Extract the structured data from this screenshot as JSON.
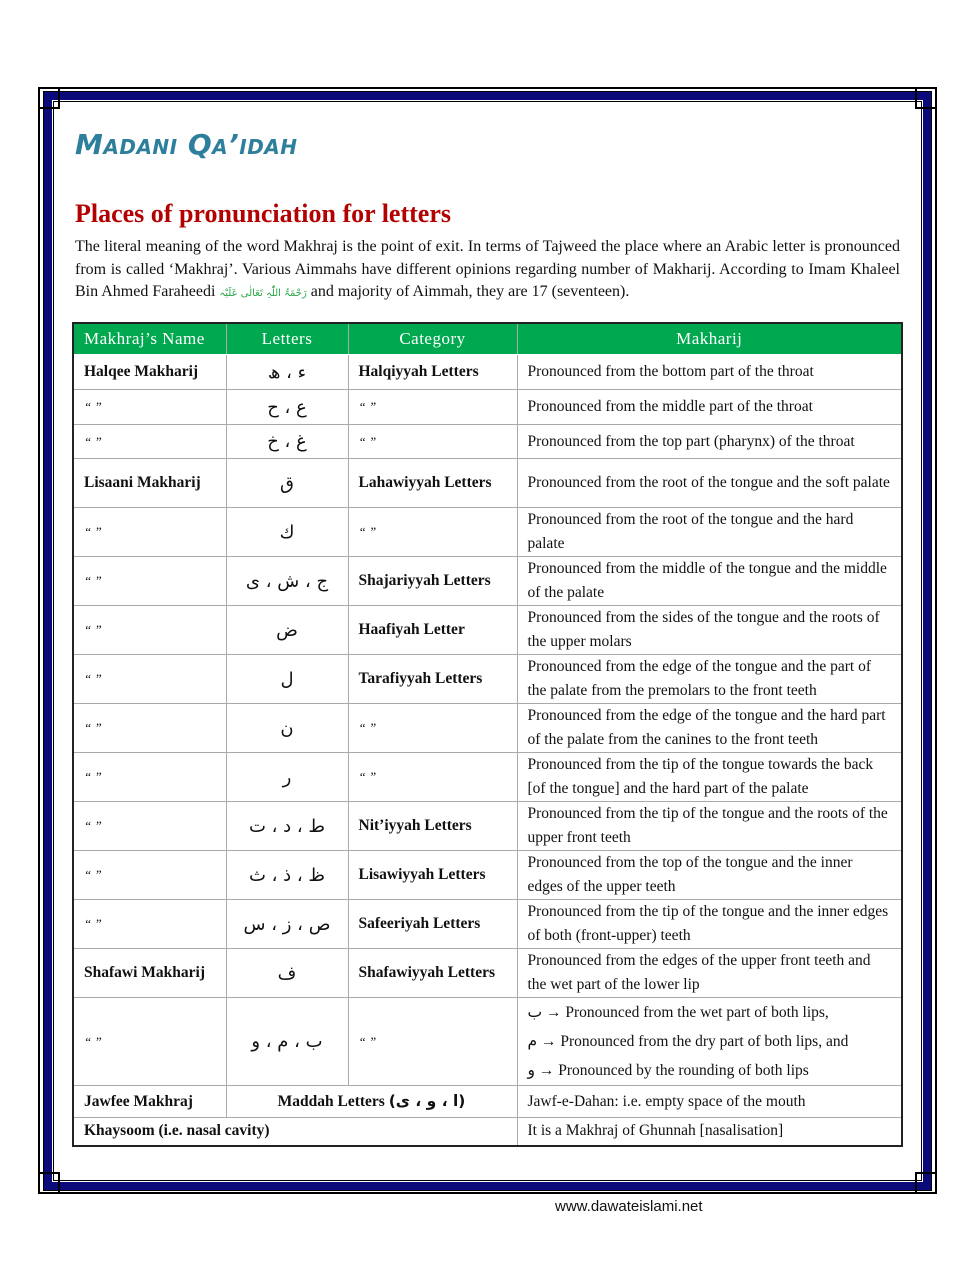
{
  "header": {
    "title": "Madani Qa’idah"
  },
  "section": {
    "heading": "Places of pronunciation for letters",
    "intro_before": "The literal meaning of the word Makhraj is the point of exit. In terms of Tajweed the place where an Arabic letter is pronounced from is called ‘Makhraj’. Various Aimmahs have different opinions regarding number of Makharij. According to Imam Khaleel Bin Ahmed Faraheedi",
    "honorific": "رَحْمَۃُ اللّٰہِ تَعَالٰی عَلَیْہ",
    "intro_after": "and majority of Aimmah, they are 17 (seventeen)."
  },
  "table": {
    "headers": [
      "Makhraj’s Name",
      "Letters",
      "Category",
      "Makharij"
    ],
    "rows": [
      {
        "name": "Halqee Makharij",
        "letters": "ء ، ھ",
        "category": "Halqiyyah Letters",
        "desc": "Pronounced from the bottom part of the throat"
      },
      {
        "name": "“ ”",
        "letters": "ع ، ح",
        "category": "“ ”",
        "desc": "Pronounced from the middle part of the throat"
      },
      {
        "name": "“ ”",
        "letters": "غ ، خ",
        "category": "“ ”",
        "desc": "Pronounced from the top part (pharynx) of the throat"
      },
      {
        "name": "Lisaani Makharij",
        "letters": "ق",
        "category": "Lahawiyyah Letters",
        "desc": "Pronounced from the root of the tongue and the soft palate"
      },
      {
        "name": "“ ”",
        "letters": "ك",
        "category": "“ ”",
        "desc": "Pronounced from the root of the tongue and the hard palate"
      },
      {
        "name": "“ ”",
        "letters": "ج ، ش ، ی",
        "category": "Shajariyyah Letters",
        "desc": "Pronounced from the middle of the tongue and the middle of the palate"
      },
      {
        "name": "“ ”",
        "letters": "ض",
        "category": "Haafiyah Letter",
        "desc": "Pronounced from the sides of the tongue and the roots of the upper molars"
      },
      {
        "name": "“ ”",
        "letters": "ل",
        "category": "Tarafiyyah Letters",
        "desc": "Pronounced from the edge of the tongue and the part of the palate from the premolars to the front teeth"
      },
      {
        "name": "“ ”",
        "letters": "ن",
        "category": "“ ”",
        "desc": "Pronounced from the edge of the tongue and the hard part of the palate from the canines to the front teeth"
      },
      {
        "name": "“ ”",
        "letters": "ر",
        "category": "“ ”",
        "desc": "Pronounced from the tip of the tongue towards the back [of the tongue] and the hard part of the palate"
      },
      {
        "name": "“ ”",
        "letters": "ط ، د ، ت",
        "category": "Nit’iyyah Letters",
        "desc": "Pronounced from the tip of the tongue and the roots of the upper front teeth"
      },
      {
        "name": "“ ”",
        "letters": "ظ ، ذ ، ث",
        "category": "Lisawiyyah Letters",
        "desc": "Pronounced from the top of the tongue and the inner edges of the upper teeth"
      },
      {
        "name": "“ ”",
        "letters": "ص ، ز ، س",
        "category": "Safeeriyah Letters",
        "desc": "Pronounced from the tip of the tongue and the inner edges of both (front-upper) teeth"
      },
      {
        "name": "Shafawi Makharij",
        "letters": "ف",
        "category": "Shafawiyyah Letters",
        "desc": "Pronounced from the edges of the upper front teeth and the wet part of the lower lip"
      }
    ],
    "lips_row": {
      "name": "“ ”",
      "letters": "ب ، م ، و",
      "category": "“ ”",
      "lines": [
        {
          "letter": "ب",
          "text": "→ Pronounced from the wet part of both lips,"
        },
        {
          "letter": "م",
          "text": "→ Pronounced from the dry part of both lips, and"
        },
        {
          "letter": "و",
          "text": "→ Pronounced by the rounding of both lips"
        }
      ]
    },
    "jawfee_row": {
      "name": "Jawfee Makhraj",
      "label": "Maddah Letters",
      "letters": "(ا ، و ، ی)",
      "desc": "Jawf-e-Dahan: i.e. empty space of the mouth"
    },
    "khaysoom_row": {
      "name": "Khaysoom (i.e. nasal cavity)",
      "desc": "It is a Makhraj of Ghunnah [nasalisation]"
    }
  },
  "footer": {
    "url": "www.dawateislami.net"
  },
  "colors": {
    "title": "#2d7f9b",
    "heading": "#b30000",
    "table_header": "#00a94f",
    "border": "#0a0a7a"
  }
}
